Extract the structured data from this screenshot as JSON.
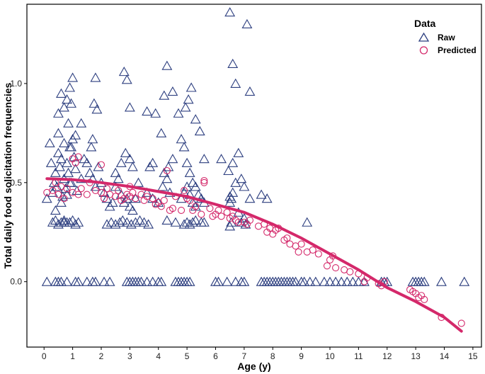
{
  "chart_data": {
    "type": "scatter",
    "xlabel": "Age (y)",
    "ylabel": "Total daily food solicitation frequencies",
    "xlim": [
      -0.6,
      15.3
    ],
    "ylim": [
      -0.33,
      1.4
    ],
    "xticks": [
      0,
      1,
      2,
      3,
      4,
      5,
      6,
      7,
      8,
      9,
      10,
      11,
      12,
      13,
      14,
      15
    ],
    "yticks": [
      0.0,
      0.5,
      1.0
    ],
    "ytick_labels": [
      "0.0",
      "0.5",
      "1.0"
    ],
    "grid": false,
    "legend": {
      "title": "Data",
      "position": "top-right",
      "entries": [
        {
          "label": "Raw",
          "marker": "triangle",
          "color": "#2c3e7f"
        },
        {
          "label": "Predicted",
          "marker": "circle",
          "color": "#d4286a"
        }
      ]
    },
    "colors": {
      "raw": "#2c3e7f",
      "predicted": "#d4286a",
      "fit": "#d4286a"
    },
    "fit_curve": {
      "name": "fitted",
      "x": [
        0.1,
        1,
        2,
        3,
        4,
        5,
        6,
        7,
        8,
        9,
        10,
        11,
        12,
        13,
        14,
        14.6
      ],
      "y": [
        0.52,
        0.515,
        0.5,
        0.48,
        0.455,
        0.43,
        0.39,
        0.35,
        0.29,
        0.22,
        0.14,
        0.06,
        -0.03,
        -0.1,
        -0.18,
        -0.25
      ]
    },
    "series": [
      {
        "name": "Raw",
        "x": [
          0.1,
          0.2,
          0.25,
          0.3,
          0.35,
          0.4,
          0.45,
          0.5,
          0.55,
          0.6,
          0.65,
          0.7,
          0.75,
          0.8,
          0.85,
          0.9,
          0.95,
          1.0,
          1.05,
          1.1,
          0.3,
          0.4,
          0.5,
          0.6,
          0.7,
          0.8,
          0.9,
          1.0,
          1.1,
          1.2,
          1.3,
          1.4,
          0.5,
          0.6,
          0.8,
          0.9,
          1.0,
          0.7,
          0.85,
          0.95,
          0.5,
          0.7,
          0.9,
          1.1,
          1.3,
          0.6,
          0.8,
          0.95,
          1.15,
          1.5,
          1.6,
          1.7,
          1.8,
          1.75,
          1.85,
          1.9,
          1.65,
          1.7,
          1.8,
          2.0,
          2.1,
          2.2,
          2.3,
          2.4,
          2.5,
          2.6,
          2.7,
          2.8,
          2.9,
          3.0,
          3.1,
          3.2,
          2.8,
          2.9,
          3.0,
          2.2,
          2.35,
          2.5,
          2.65,
          2.75,
          2.9,
          3.05,
          3.2,
          3.35,
          3.5,
          3.65,
          2.5,
          2.7,
          2.85,
          3.0,
          3.1,
          3.3,
          3.6,
          3.8,
          4.0,
          4.15,
          4.3,
          4.4,
          4.6,
          4.2,
          4.3,
          4.5,
          4.7,
          4.8,
          4.9,
          5.0,
          5.1,
          5.2,
          5.3,
          5.4,
          5.5,
          5.6,
          4.9,
          5.0,
          5.1,
          5.2,
          5.3,
          5.5,
          4.95,
          5.05,
          5.15,
          5.3,
          5.45,
          5.6,
          6.2,
          6.5,
          6.6,
          6.7,
          6.8,
          6.9,
          7.0,
          7.1,
          7.2,
          6.5,
          6.55,
          6.6,
          6.7,
          6.8,
          6.9,
          7.0,
          7.2,
          6.45,
          6.6,
          7.6,
          7.8,
          9.2,
          4.8,
          4.9,
          5.0,
          5.1,
          5.2,
          5.3,
          4.2,
          4.35,
          4.5,
          3.9,
          4.1,
          3.6,
          3.7,
          3.8,
          0.1,
          0.4,
          0.5,
          0.6,
          0.8,
          1.1,
          1.2,
          1.5,
          1.7,
          1.8,
          2.1,
          2.3,
          2.9,
          3.0,
          3.1,
          3.2,
          3.3,
          3.4,
          3.6,
          3.8,
          4.0,
          4.1,
          4.6,
          4.7,
          4.8,
          4.9,
          5.0,
          5.1,
          6.0,
          6.1,
          6.4,
          6.7,
          6.9,
          7.0,
          7.6,
          7.7,
          7.8,
          7.9,
          8.0,
          8.1,
          8.2,
          8.3,
          8.4,
          8.5,
          8.6,
          8.7,
          8.8,
          9.0,
          9.1,
          9.3,
          9.5,
          9.8,
          10.0,
          10.2,
          10.4,
          10.6,
          10.8,
          11.0,
          11.2,
          11.8,
          11.9,
          12.0,
          12.9,
          13.0,
          13.1,
          13.2,
          13.3,
          13.9,
          14.7,
          0.4,
          0.7,
          6.5,
          6.55,
          7.05,
          4.3,
          5.6,
          6.5
        ],
        "y": [
          0.42,
          0.7,
          0.6,
          0.45,
          0.5,
          0.55,
          0.48,
          0.65,
          0.58,
          0.62,
          0.43,
          0.52,
          0.47,
          0.6,
          0.55,
          0.5,
          0.68,
          0.72,
          0.63,
          0.57,
          0.3,
          0.31,
          0.29,
          0.3,
          0.31,
          0.3,
          0.3,
          0.31,
          0.29,
          0.3,
          0.52,
          0.62,
          0.85,
          0.95,
          0.92,
          0.98,
          1.03,
          0.88,
          0.8,
          0.9,
          0.75,
          0.7,
          0.68,
          0.74,
          0.8,
          0.4,
          0.44,
          0.5,
          0.46,
          0.6,
          0.55,
          0.52,
          0.48,
          0.9,
          0.87,
          0.58,
          0.68,
          0.72,
          1.03,
          0.5,
          0.45,
          0.42,
          0.38,
          0.4,
          0.48,
          0.52,
          0.44,
          0.4,
          0.42,
          0.38,
          0.36,
          0.42,
          1.06,
          1.02,
          0.88,
          0.29,
          0.3,
          0.29,
          0.3,
          0.31,
          0.3,
          0.29,
          0.3,
          0.31,
          0.3,
          0.29,
          0.55,
          0.6,
          0.65,
          0.62,
          0.58,
          0.5,
          0.45,
          0.42,
          0.4,
          0.48,
          0.52,
          0.45,
          0.3,
          0.94,
          1.09,
          0.96,
          0.85,
          0.72,
          0.68,
          0.6,
          0.55,
          0.5,
          0.48,
          0.44,
          0.42,
          0.4,
          0.29,
          0.3,
          0.29,
          0.3,
          0.31,
          0.3,
          0.88,
          0.92,
          0.98,
          0.82,
          0.76,
          0.62,
          0.62,
          1.36,
          1.1,
          1.0,
          0.65,
          0.52,
          0.48,
          1.3,
          0.96,
          0.4,
          0.42,
          0.45,
          0.5,
          0.35,
          0.3,
          0.32,
          0.42,
          0.56,
          0.6,
          0.44,
          0.42,
          0.3,
          0.42,
          0.45,
          0.48,
          0.44,
          0.4,
          0.38,
          0.55,
          0.58,
          0.62,
          0.85,
          0.75,
          0.86,
          0.58,
          0.6,
          0.0,
          0.0,
          0.0,
          0.0,
          0.0,
          0.0,
          0.0,
          0.0,
          0.0,
          0.0,
          0.0,
          0.0,
          0.0,
          0.0,
          0.0,
          0.0,
          0.0,
          0.0,
          0.0,
          0.0,
          0.0,
          0.0,
          0.0,
          0.0,
          0.0,
          0.0,
          0.0,
          0.0,
          0.0,
          0.0,
          0.0,
          0.0,
          0.0,
          0.0,
          0.0,
          0.0,
          0.0,
          0.0,
          0.0,
          0.0,
          0.0,
          0.0,
          0.0,
          0.0,
          0.0,
          0.0,
          0.0,
          0.0,
          0.0,
          0.0,
          0.0,
          0.0,
          0.0,
          0.0,
          0.0,
          0.0,
          0.0,
          0.0,
          0.0,
          0.0,
          0.0,
          0.0,
          0.0,
          0.0,
          0.0,
          0.0,
          0.0,
          0.0,
          0.0,
          0.36,
          0.3,
          0.28,
          0.3,
          0.29,
          0.31,
          0.3,
          0.43
        ]
      },
      {
        "name": "Predicted",
        "x": [
          0.1,
          0.3,
          0.4,
          0.5,
          0.6,
          0.7,
          0.8,
          1.0,
          1.1,
          1.2,
          1.3,
          1.5,
          1.6,
          1.8,
          2.0,
          2.1,
          2.2,
          2.3,
          2.5,
          2.6,
          2.7,
          2.8,
          2.9,
          3.0,
          3.1,
          3.2,
          3.4,
          3.5,
          3.6,
          3.8,
          3.9,
          4.0,
          4.1,
          4.2,
          4.4,
          4.5,
          4.6,
          4.8,
          4.9,
          5.0,
          5.1,
          5.2,
          5.3,
          5.5,
          5.6,
          5.8,
          5.9,
          6.0,
          6.1,
          6.2,
          6.4,
          6.5,
          6.6,
          6.7,
          6.8,
          7.0,
          7.1,
          7.2,
          7.5,
          7.7,
          7.8,
          7.9,
          8.0,
          8.1,
          8.2,
          8.4,
          8.5,
          8.6,
          8.8,
          8.9,
          9.0,
          9.2,
          9.4,
          9.6,
          9.9,
          10.0,
          10.1,
          10.2,
          10.5,
          10.7,
          11.0,
          11.2,
          11.3,
          11.7,
          11.8,
          11.9,
          12.8,
          12.9,
          13.0,
          13.1,
          13.2,
          13.3,
          13.9,
          14.6,
          1.0,
          1.2,
          4.3,
          2.0,
          3.0,
          5.6
        ],
        "y": [
          0.45,
          0.46,
          0.5,
          0.44,
          0.48,
          0.42,
          0.47,
          0.45,
          0.6,
          0.44,
          0.47,
          0.44,
          0.5,
          0.46,
          0.45,
          0.42,
          0.47,
          0.44,
          0.43,
          0.46,
          0.41,
          0.42,
          0.44,
          0.43,
          0.45,
          0.42,
          0.44,
          0.41,
          0.43,
          0.42,
          0.39,
          0.4,
          0.38,
          0.41,
          0.36,
          0.37,
          0.43,
          0.36,
          0.46,
          0.42,
          0.41,
          0.36,
          0.38,
          0.34,
          0.5,
          0.37,
          0.33,
          0.34,
          0.36,
          0.33,
          0.35,
          0.32,
          0.33,
          0.31,
          0.3,
          0.3,
          0.29,
          0.31,
          0.28,
          0.29,
          0.25,
          0.27,
          0.24,
          0.26,
          0.27,
          0.21,
          0.22,
          0.19,
          0.18,
          0.15,
          0.19,
          0.15,
          0.16,
          0.14,
          0.08,
          0.11,
          0.13,
          0.07,
          0.06,
          0.05,
          0.04,
          0.0,
          0.02,
          -0.01,
          -0.02,
          0.0,
          -0.04,
          -0.05,
          -0.06,
          -0.08,
          -0.07,
          -0.09,
          -0.18,
          -0.21,
          0.62,
          0.63,
          0.56,
          0.59,
          0.48,
          0.51
        ]
      }
    ]
  }
}
